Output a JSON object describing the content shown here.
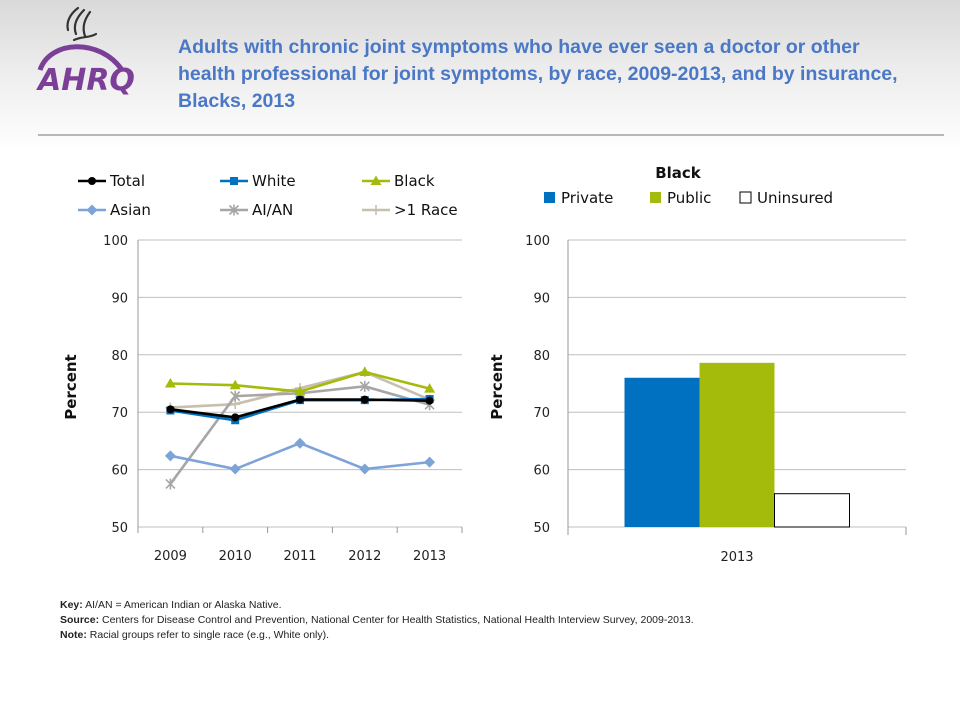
{
  "title": "Adults with chronic joint symptoms who have ever seen a doctor or other health professional for joint symptoms, by race, 2009-2013, and by insurance, Blacks, 2013",
  "logo_text": "AHRQ",
  "colors": {
    "title": "#4a78c6",
    "total": "#000000",
    "white": "#0070c0",
    "black": "#a5bb0b",
    "asian": "#7ea3d8",
    "aian": "#a6a6a6",
    "multi": "#c8bfae",
    "private": "#0070c0",
    "public": "#a5bb0b",
    "uninsured": "#ffffff"
  },
  "chart_data": [
    {
      "type": "line",
      "ylabel": "Percent",
      "ylim": [
        50,
        100
      ],
      "yticks": [
        "50",
        "60",
        "70",
        "80",
        "90",
        "100"
      ],
      "x": [
        "2009",
        "2010",
        "2011",
        "2012",
        "2013"
      ],
      "legend_position": "top",
      "series": [
        {
          "name": "Total",
          "key": "total",
          "marker": "circle",
          "values": [
            70.5,
            69.1,
            72.2,
            72.2,
            72.0
          ]
        },
        {
          "name": "White",
          "key": "white",
          "marker": "square",
          "values": [
            70.3,
            68.6,
            72.1,
            72.1,
            72.3
          ]
        },
        {
          "name": "Black",
          "key": "black",
          "marker": "triangle",
          "values": [
            75.0,
            74.7,
            73.6,
            77.0,
            74.1
          ]
        },
        {
          "name": "Asian",
          "key": "asian",
          "marker": "diamond",
          "values": [
            62.4,
            60.1,
            64.6,
            60.1,
            61.3
          ]
        },
        {
          "name": "AI/AN",
          "key": "aian",
          "marker": "star",
          "values": [
            57.5,
            72.8,
            73.3,
            74.5,
            71.3
          ]
        },
        {
          "name": ">1 Race",
          "key": "multi",
          "marker": "plus",
          "values": [
            70.8,
            71.4,
            74.2,
            77.0,
            72.2
          ]
        }
      ]
    },
    {
      "type": "bar",
      "title": "Black",
      "ylabel": "Percent",
      "ylim": [
        50,
        100
      ],
      "yticks": [
        "50",
        "60",
        "70",
        "80",
        "90",
        "100"
      ],
      "categories": [
        "2013"
      ],
      "legend_position": "top",
      "series": [
        {
          "name": "Private",
          "key": "private",
          "values": [
            76.0
          ]
        },
        {
          "name": "Public",
          "key": "public",
          "values": [
            78.6
          ]
        },
        {
          "name": "Uninsured",
          "key": "uninsured",
          "values": [
            55.8
          ]
        }
      ]
    }
  ],
  "notes": {
    "key_label": "Key:",
    "key_text": "AI/AN = American Indian or Alaska Native.",
    "source_label": "Source:",
    "source_text": "Centers for Disease Control and Prevention, National Center for Health Statistics, National Health Interview Survey, 2009-2013.",
    "note_label": "Note:",
    "note_text": "Racial groups refer to single race (e.g., White only)."
  }
}
